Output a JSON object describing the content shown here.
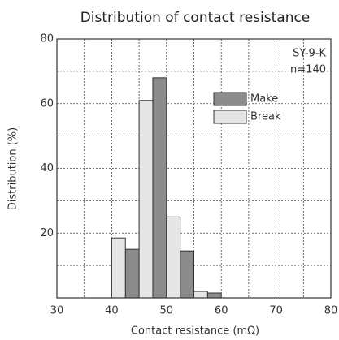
{
  "chart_data": {
    "type": "histogram",
    "title": "Distribution of contact resistance",
    "xlabel": "Contact resistance (mΩ)",
    "ylabel": "Distribution (%)",
    "annotations": [
      "SY-9-K",
      "n=140"
    ],
    "bins": [
      40,
      45,
      50,
      55,
      60
    ],
    "series": [
      {
        "name": "Make",
        "color": "#8c8c8c",
        "values": [
          15,
          68,
          14.5,
          1.5
        ]
      },
      {
        "name": "Break",
        "color": "#e6e6e6",
        "values": [
          18.5,
          61,
          25,
          2
        ]
      }
    ],
    "xlim": [
      30,
      80
    ],
    "xticks": [
      30,
      40,
      50,
      60,
      70,
      80
    ],
    "x_minor_ticks": [
      35,
      45,
      55,
      65,
      75
    ],
    "ylim": [
      0,
      80
    ],
    "yticks": [
      20,
      40,
      60,
      80
    ],
    "y_minor_ticks": [
      10,
      30,
      50,
      70
    ],
    "grid": true
  }
}
